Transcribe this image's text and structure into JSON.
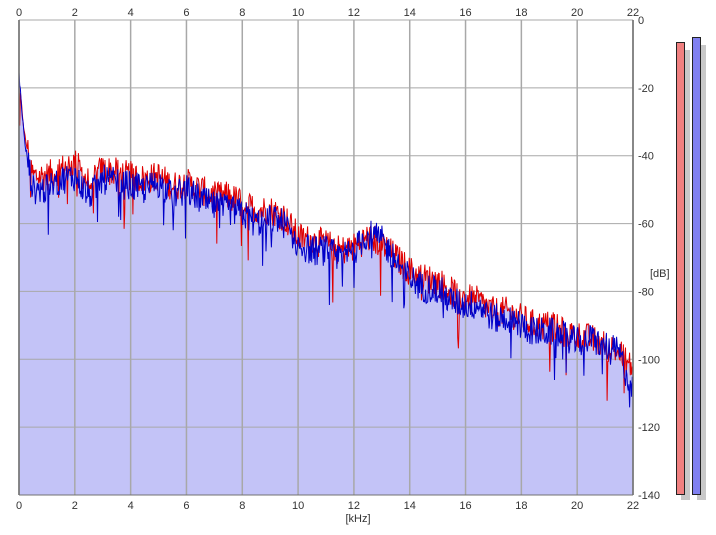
{
  "chart_data": {
    "type": "area",
    "xlabel": "[kHz]",
    "ylabel": "[dB]",
    "xlim": [
      0,
      22
    ],
    "ylim": [
      -140,
      0
    ],
    "x_ticks": [
      "0",
      "2",
      "4",
      "6",
      "8",
      "10",
      "12",
      "14",
      "16",
      "18",
      "20",
      "22"
    ],
    "y_ticks": [
      "0",
      "-20",
      "-40",
      "-60",
      "-80",
      "-100",
      "-120",
      "-140"
    ],
    "grid": true,
    "fill_color": "#c3c3f7",
    "series": [
      {
        "color": "#e00000",
        "x": [
          0.0,
          0.2,
          0.5,
          1.0,
          1.5,
          2.0,
          2.5,
          3.0,
          3.5,
          4.0,
          4.5,
          5.0,
          5.5,
          6.0,
          6.5,
          7.0,
          7.5,
          8.0,
          8.5,
          9.0,
          9.5,
          10.0,
          10.5,
          11.0,
          11.5,
          12.0,
          12.5,
          13.0,
          13.5,
          14.0,
          14.5,
          15.0,
          15.5,
          16.0,
          16.5,
          17.0,
          17.5,
          18.0,
          18.5,
          19.0,
          19.5,
          20.0,
          20.5,
          21.0,
          21.5,
          22.0
        ],
        "y": [
          -18,
          -34,
          -46,
          -46,
          -44,
          -42,
          -48,
          -44,
          -45,
          -46,
          -47,
          -46,
          -49,
          -48,
          -50,
          -52,
          -52,
          -54,
          -56,
          -56,
          -58,
          -64,
          -65,
          -66,
          -68,
          -67,
          -64,
          -66,
          -70,
          -74,
          -76,
          -77,
          -80,
          -82,
          -83,
          -86,
          -86,
          -88,
          -90,
          -90,
          -92,
          -93,
          -94,
          -96,
          -98,
          -103
        ]
      },
      {
        "color": "#0000c8",
        "x": [
          0.0,
          0.2,
          0.5,
          1.0,
          1.5,
          2.0,
          2.5,
          3.0,
          3.5,
          4.0,
          4.5,
          5.0,
          5.5,
          6.0,
          6.5,
          7.0,
          7.5,
          8.0,
          8.5,
          9.0,
          9.5,
          10.0,
          10.5,
          11.0,
          11.5,
          12.0,
          12.5,
          13.0,
          13.5,
          14.0,
          14.5,
          15.0,
          15.5,
          16.0,
          16.5,
          17.0,
          17.5,
          18.0,
          18.5,
          19.0,
          19.5,
          20.0,
          20.5,
          21.0,
          21.5,
          22.0
        ],
        "y": [
          -16,
          -36,
          -50,
          -50,
          -47,
          -46,
          -52,
          -47,
          -48,
          -49,
          -50,
          -48,
          -52,
          -50,
          -53,
          -55,
          -56,
          -57,
          -60,
          -58,
          -60,
          -66,
          -68,
          -68,
          -70,
          -68,
          -63,
          -65,
          -71,
          -76,
          -79,
          -79,
          -83,
          -84,
          -84,
          -88,
          -88,
          -90,
          -92,
          -92,
          -93,
          -95,
          -94,
          -96,
          -98,
          -110
        ]
      }
    ]
  },
  "meters": [
    {
      "color": "#f08080",
      "level_db": -6.5
    },
    {
      "color": "#8080f0",
      "level_db": -5.0
    }
  ]
}
